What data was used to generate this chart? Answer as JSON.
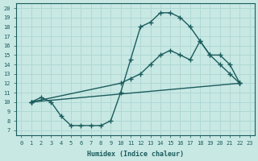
{
  "bg_color": "#c8e8e4",
  "grid_color": "#b0d8d4",
  "line_color": "#1a5c5c",
  "xlabel": "Humidex (Indice chaleur)",
  "xlim": [
    -0.5,
    23.5
  ],
  "ylim": [
    6.5,
    20.5
  ],
  "yticks": [
    7,
    8,
    9,
    10,
    11,
    12,
    13,
    14,
    15,
    16,
    17,
    18,
    19,
    20
  ],
  "xticks": [
    0,
    1,
    2,
    3,
    4,
    5,
    6,
    7,
    8,
    9,
    10,
    11,
    12,
    13,
    14,
    15,
    16,
    17,
    18,
    19,
    20,
    21,
    22,
    23
  ],
  "curve1_x": [
    1,
    2,
    3,
    4,
    5,
    6,
    7,
    8,
    9,
    10,
    11,
    12,
    13,
    14,
    15,
    16,
    17,
    18,
    19,
    20,
    21,
    22
  ],
  "curve1_y": [
    10.0,
    10.5,
    10.0,
    8.5,
    7.5,
    7.5,
    7.5,
    7.5,
    8.0,
    11.0,
    14.5,
    18.0,
    18.5,
    19.5,
    19.5,
    19.0,
    18.0,
    16.5,
    15.0,
    14.0,
    13.0,
    12.0
  ],
  "curve2_x": [
    1,
    10,
    11,
    12,
    13,
    14,
    15,
    16,
    17,
    18,
    19,
    20,
    21,
    22
  ],
  "curve2_y": [
    10.0,
    12.0,
    12.5,
    13.0,
    14.0,
    15.0,
    15.5,
    15.0,
    14.5,
    16.5,
    15.0,
    15.0,
    14.0,
    12.0
  ],
  "curve3_x": [
    1,
    22
  ],
  "curve3_y": [
    10.0,
    12.0
  ],
  "markersize": 2.5,
  "linewidth": 1.0
}
